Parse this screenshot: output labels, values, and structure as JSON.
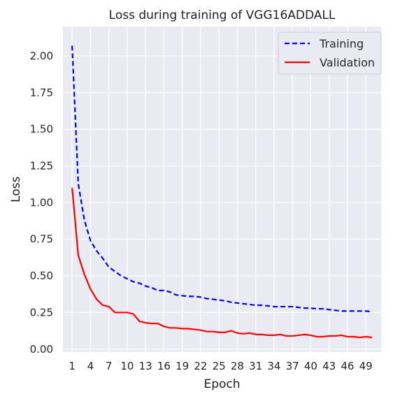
{
  "chart_data": {
    "type": "line",
    "title": "Loss during training of VGG16ADDALL",
    "xlabel": "Epoch",
    "ylabel": "Loss",
    "xlim": [
      -0.5,
      51.5
    ],
    "ylim": [
      -0.02,
      2.2
    ],
    "x_ticks": [
      1,
      4,
      7,
      10,
      13,
      16,
      19,
      22,
      25,
      28,
      31,
      34,
      37,
      40,
      43,
      46,
      49
    ],
    "y_ticks": [
      0.0,
      0.25,
      0.5,
      0.75,
      1.0,
      1.25,
      1.5,
      1.75,
      2.0
    ],
    "y_tick_labels": [
      "0.00",
      "0.25",
      "0.50",
      "0.75",
      "1.00",
      "1.25",
      "1.50",
      "1.75",
      "2.00"
    ],
    "grid": true,
    "legend_position": "top-right",
    "background_color": "#eaeaf2",
    "grid_color": "#ffffff",
    "x": [
      1,
      2,
      3,
      4,
      5,
      6,
      7,
      8,
      9,
      10,
      11,
      12,
      13,
      14,
      15,
      16,
      17,
      18,
      19,
      20,
      21,
      22,
      23,
      24,
      25,
      26,
      27,
      28,
      29,
      30,
      31,
      32,
      33,
      34,
      35,
      36,
      37,
      38,
      39,
      40,
      41,
      42,
      43,
      44,
      45,
      46,
      47,
      48,
      49,
      50
    ],
    "series": [
      {
        "name": "Training",
        "color": "#0000ff",
        "line_style": "dashed",
        "values": [
          2.07,
          1.13,
          0.88,
          0.74,
          0.67,
          0.62,
          0.56,
          0.53,
          0.5,
          0.48,
          0.46,
          0.45,
          0.43,
          0.42,
          0.4,
          0.4,
          0.39,
          0.37,
          0.365,
          0.36,
          0.36,
          0.355,
          0.345,
          0.34,
          0.335,
          0.33,
          0.32,
          0.315,
          0.31,
          0.305,
          0.3,
          0.3,
          0.295,
          0.29,
          0.29,
          0.29,
          0.29,
          0.285,
          0.28,
          0.28,
          0.275,
          0.275,
          0.27,
          0.265,
          0.26,
          0.26,
          0.26,
          0.26,
          0.26,
          0.255
        ]
      },
      {
        "name": "Validation",
        "color": "#ff0000",
        "line_style": "solid",
        "values": [
          1.1,
          0.64,
          0.51,
          0.41,
          0.34,
          0.3,
          0.29,
          0.25,
          0.25,
          0.25,
          0.24,
          0.19,
          0.18,
          0.175,
          0.175,
          0.155,
          0.145,
          0.145,
          0.14,
          0.14,
          0.135,
          0.13,
          0.12,
          0.12,
          0.115,
          0.115,
          0.125,
          0.11,
          0.105,
          0.11,
          0.1,
          0.1,
          0.095,
          0.095,
          0.1,
          0.09,
          0.09,
          0.095,
          0.1,
          0.095,
          0.085,
          0.085,
          0.09,
          0.09,
          0.095,
          0.085,
          0.085,
          0.08,
          0.085,
          0.08
        ]
      }
    ]
  }
}
